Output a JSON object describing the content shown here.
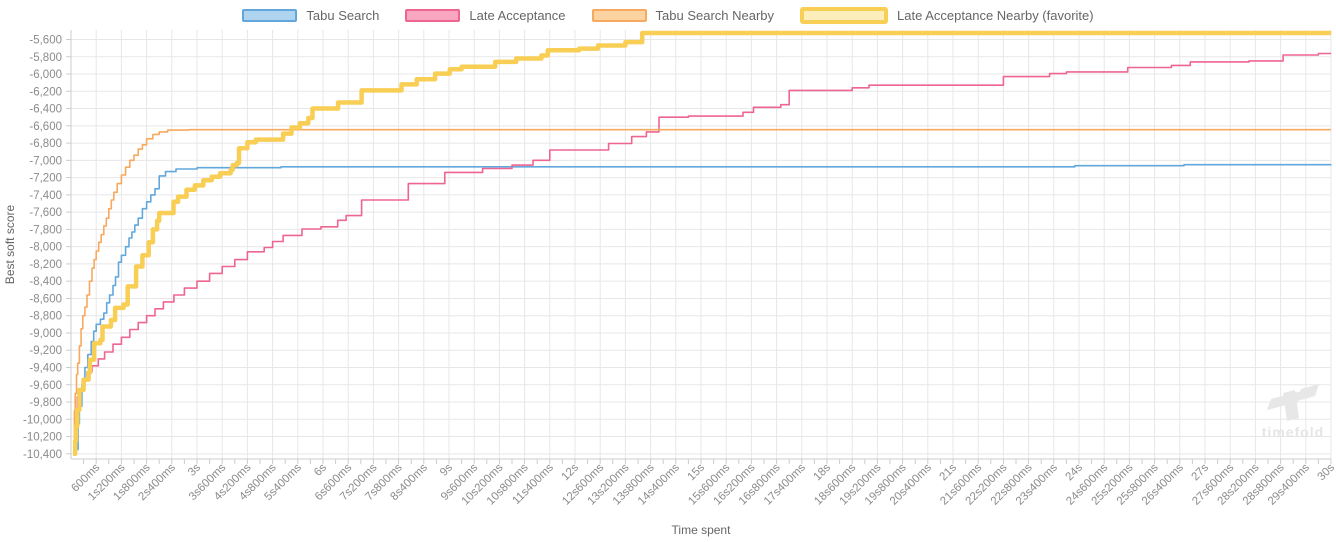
{
  "watermark": {
    "text": "timefold"
  },
  "chart_data": {
    "type": "line",
    "step": true,
    "title": "",
    "xlabel": "Time spent",
    "ylabel": "Best soft score",
    "x_unit": "seconds",
    "xlim_seconds": [
      0,
      30
    ],
    "ylim": [
      -10460,
      -5490
    ],
    "grid": true,
    "legend_position": "top-center",
    "x_major_tick_interval_ms": 600,
    "x_minor_tick_interval_ms": 300,
    "y_tick_interval": 200,
    "x_ticks": [
      {
        "t": 0.6,
        "label": "600ms"
      },
      {
        "t": 1.2,
        "label": "1s200ms"
      },
      {
        "t": 1.8,
        "label": "1s800ms"
      },
      {
        "t": 2.4,
        "label": "2s400ms"
      },
      {
        "t": 3,
        "label": "3s"
      },
      {
        "t": 3.6,
        "label": "3s600ms"
      },
      {
        "t": 4.2,
        "label": "4s200ms"
      },
      {
        "t": 4.8,
        "label": "4s800ms"
      },
      {
        "t": 5.4,
        "label": "5s400ms"
      },
      {
        "t": 6,
        "label": "6s"
      },
      {
        "t": 6.6,
        "label": "6s600ms"
      },
      {
        "t": 7.2,
        "label": "7s200ms"
      },
      {
        "t": 7.8,
        "label": "7s800ms"
      },
      {
        "t": 8.4,
        "label": "8s400ms"
      },
      {
        "t": 9,
        "label": "9s"
      },
      {
        "t": 9.6,
        "label": "9s600ms"
      },
      {
        "t": 10.2,
        "label": "10s200ms"
      },
      {
        "t": 10.8,
        "label": "10s800ms"
      },
      {
        "t": 11.4,
        "label": "11s400ms"
      },
      {
        "t": 12,
        "label": "12s"
      },
      {
        "t": 12.6,
        "label": "12s600ms"
      },
      {
        "t": 13.2,
        "label": "13s200ms"
      },
      {
        "t": 13.8,
        "label": "13s800ms"
      },
      {
        "t": 14.4,
        "label": "14s400ms"
      },
      {
        "t": 15,
        "label": "15s"
      },
      {
        "t": 15.6,
        "label": "15s600ms"
      },
      {
        "t": 16.2,
        "label": "16s200ms"
      },
      {
        "t": 16.8,
        "label": "16s800ms"
      },
      {
        "t": 17.4,
        "label": "17s400ms"
      },
      {
        "t": 18,
        "label": "18s"
      },
      {
        "t": 18.6,
        "label": "18s600ms"
      },
      {
        "t": 19.2,
        "label": "19s200ms"
      },
      {
        "t": 19.8,
        "label": "19s800ms"
      },
      {
        "t": 20.4,
        "label": "20s400ms"
      },
      {
        "t": 21,
        "label": "21s"
      },
      {
        "t": 21.6,
        "label": "21s600ms"
      },
      {
        "t": 22.2,
        "label": "22s200ms"
      },
      {
        "t": 22.8,
        "label": "22s800ms"
      },
      {
        "t": 23.4,
        "label": "23s400ms"
      },
      {
        "t": 24,
        "label": "24s"
      },
      {
        "t": 24.6,
        "label": "24s600ms"
      },
      {
        "t": 25.2,
        "label": "25s200ms"
      },
      {
        "t": 25.8,
        "label": "25s800ms"
      },
      {
        "t": 26.4,
        "label": "26s400ms"
      },
      {
        "t": 27,
        "label": "27s"
      },
      {
        "t": 27.6,
        "label": "27s600ms"
      },
      {
        "t": 28.2,
        "label": "28s200ms"
      },
      {
        "t": 28.8,
        "label": "28s800ms"
      },
      {
        "t": 29.4,
        "label": "29s400ms"
      },
      {
        "t": 30,
        "label": "30s"
      }
    ],
    "y_ticks": [
      {
        "v": -5600,
        "label": "-5,600"
      },
      {
        "v": -5800,
        "label": "-5,800"
      },
      {
        "v": -6000,
        "label": "-6,000"
      },
      {
        "v": -6200,
        "label": "-6,200"
      },
      {
        "v": -6400,
        "label": "-6,400"
      },
      {
        "v": -6600,
        "label": "-6,600"
      },
      {
        "v": -6800,
        "label": "-6,800"
      },
      {
        "v": -7000,
        "label": "-7,000"
      },
      {
        "v": -7200,
        "label": "-7,200"
      },
      {
        "v": -7400,
        "label": "-7,400"
      },
      {
        "v": -7600,
        "label": "-7,600"
      },
      {
        "v": -7800,
        "label": "-7,800"
      },
      {
        "v": -8000,
        "label": "-8,000"
      },
      {
        "v": -8200,
        "label": "-8,200"
      },
      {
        "v": -8400,
        "label": "-8,400"
      },
      {
        "v": -8600,
        "label": "-8,600"
      },
      {
        "v": -8800,
        "label": "-8,800"
      },
      {
        "v": -9000,
        "label": "-9,000"
      },
      {
        "v": -9200,
        "label": "-9,200"
      },
      {
        "v": -9400,
        "label": "-9,400"
      },
      {
        "v": -9600,
        "label": "-9,600"
      },
      {
        "v": -9800,
        "label": "-9,800"
      },
      {
        "v": -10000,
        "label": "-10,000"
      },
      {
        "v": -10200,
        "label": "-10,200"
      },
      {
        "v": -10400,
        "label": "-10,400"
      }
    ],
    "series": [
      {
        "name": "Tabu Search",
        "color": "#62a7dc",
        "legend_fill": "#aed4f0",
        "line_width": 1.6,
        "favorite": false,
        "points": [
          [
            0.14,
            -10350
          ],
          [
            0.17,
            -10050
          ],
          [
            0.2,
            -9850
          ],
          [
            0.26,
            -9600
          ],
          [
            0.33,
            -9400
          ],
          [
            0.4,
            -9250
          ],
          [
            0.48,
            -9100
          ],
          [
            0.54,
            -8980
          ],
          [
            0.6,
            -8900
          ],
          [
            0.7,
            -8840
          ],
          [
            0.78,
            -8770
          ],
          [
            0.85,
            -8650
          ],
          [
            0.92,
            -8560
          ],
          [
            1.0,
            -8450
          ],
          [
            1.06,
            -8350
          ],
          [
            1.13,
            -8180
          ],
          [
            1.2,
            -8100
          ],
          [
            1.3,
            -8000
          ],
          [
            1.38,
            -7900
          ],
          [
            1.45,
            -7830
          ],
          [
            1.52,
            -7750
          ],
          [
            1.6,
            -7670
          ],
          [
            1.7,
            -7560
          ],
          [
            1.8,
            -7480
          ],
          [
            1.9,
            -7400
          ],
          [
            2.0,
            -7330
          ],
          [
            2.1,
            -7180
          ],
          [
            2.25,
            -7130
          ],
          [
            2.5,
            -7100
          ],
          [
            3.0,
            -7085
          ],
          [
            5.0,
            -7075
          ],
          [
            23.9,
            -7062
          ],
          [
            26.5,
            -7050
          ],
          [
            30,
            -7048
          ]
        ]
      },
      {
        "name": "Late Acceptance",
        "color": "#ee6590",
        "legend_fill": "#f8a6c1",
        "line_width": 1.6,
        "favorite": false,
        "points": [
          [
            0.07,
            -10350
          ],
          [
            0.1,
            -9930
          ],
          [
            0.15,
            -9740
          ],
          [
            0.2,
            -9650
          ],
          [
            0.28,
            -9540
          ],
          [
            0.38,
            -9450
          ],
          [
            0.5,
            -9380
          ],
          [
            0.65,
            -9300
          ],
          [
            0.8,
            -9220
          ],
          [
            1.0,
            -9130
          ],
          [
            1.2,
            -9050
          ],
          [
            1.4,
            -8960
          ],
          [
            1.6,
            -8880
          ],
          [
            1.8,
            -8800
          ],
          [
            2.0,
            -8720
          ],
          [
            2.2,
            -8640
          ],
          [
            2.45,
            -8560
          ],
          [
            2.7,
            -8480
          ],
          [
            3.0,
            -8400
          ],
          [
            3.3,
            -8310
          ],
          [
            3.6,
            -8230
          ],
          [
            3.9,
            -8150
          ],
          [
            4.2,
            -8060
          ],
          [
            4.6,
            -8010
          ],
          [
            4.8,
            -7940
          ],
          [
            5.05,
            -7870
          ],
          [
            5.5,
            -7795
          ],
          [
            5.95,
            -7770
          ],
          [
            6.35,
            -7695
          ],
          [
            6.55,
            -7640
          ],
          [
            6.92,
            -7460
          ],
          [
            8.03,
            -7270
          ],
          [
            8.9,
            -7140
          ],
          [
            9.8,
            -7095
          ],
          [
            10.5,
            -7055
          ],
          [
            11.0,
            -7000
          ],
          [
            11.4,
            -6880
          ],
          [
            12.8,
            -6805
          ],
          [
            13.35,
            -6725
          ],
          [
            13.7,
            -6670
          ],
          [
            14.0,
            -6500
          ],
          [
            14.7,
            -6488
          ],
          [
            16.0,
            -6443
          ],
          [
            16.25,
            -6385
          ],
          [
            16.9,
            -6355
          ],
          [
            17.1,
            -6190
          ],
          [
            18.6,
            -6160
          ],
          [
            19.0,
            -6130
          ],
          [
            22.2,
            -6030
          ],
          [
            23.3,
            -5995
          ],
          [
            23.7,
            -5975
          ],
          [
            25.16,
            -5925
          ],
          [
            26.2,
            -5900
          ],
          [
            26.65,
            -5860
          ],
          [
            28.05,
            -5848
          ],
          [
            28.86,
            -5780
          ],
          [
            29.7,
            -5762
          ],
          [
            30,
            -5762
          ]
        ]
      },
      {
        "name": "Tabu Search Nearby",
        "color": "#f7a95f",
        "legend_fill": "#fad3a1",
        "line_width": 1.6,
        "favorite": false,
        "points": [
          [
            0.05,
            -10300
          ],
          [
            0.08,
            -9900
          ],
          [
            0.1,
            -9700
          ],
          [
            0.13,
            -9480
          ],
          [
            0.16,
            -9350
          ],
          [
            0.2,
            -9150
          ],
          [
            0.24,
            -8950
          ],
          [
            0.28,
            -8800
          ],
          [
            0.33,
            -8700
          ],
          [
            0.38,
            -8560
          ],
          [
            0.44,
            -8400
          ],
          [
            0.5,
            -8250
          ],
          [
            0.55,
            -8150
          ],
          [
            0.6,
            -8050
          ],
          [
            0.66,
            -7950
          ],
          [
            0.72,
            -7860
          ],
          [
            0.78,
            -7760
          ],
          [
            0.84,
            -7670
          ],
          [
            0.9,
            -7560
          ],
          [
            0.96,
            -7460
          ],
          [
            1.02,
            -7370
          ],
          [
            1.1,
            -7270
          ],
          [
            1.2,
            -7170
          ],
          [
            1.3,
            -7080
          ],
          [
            1.4,
            -7000
          ],
          [
            1.5,
            -6940
          ],
          [
            1.6,
            -6870
          ],
          [
            1.7,
            -6820
          ],
          [
            1.8,
            -6750
          ],
          [
            1.95,
            -6700
          ],
          [
            2.1,
            -6670
          ],
          [
            2.3,
            -6650
          ],
          [
            2.8,
            -6645
          ],
          [
            30,
            -6645
          ]
        ]
      },
      {
        "name": "Late Acceptance Nearby (favorite)",
        "color": "#f8ce55",
        "legend_fill": "#fceebb",
        "line_width": 4.5,
        "favorite": true,
        "points": [
          [
            0.05,
            -10400
          ],
          [
            0.1,
            -10250
          ],
          [
            0.12,
            -10080
          ],
          [
            0.15,
            -9890
          ],
          [
            0.2,
            -9660
          ],
          [
            0.3,
            -9540
          ],
          [
            0.42,
            -9460
          ],
          [
            0.45,
            -9310
          ],
          [
            0.55,
            -9120
          ],
          [
            0.7,
            -9080
          ],
          [
            0.75,
            -8925
          ],
          [
            0.95,
            -8850
          ],
          [
            1.05,
            -8710
          ],
          [
            1.25,
            -8670
          ],
          [
            1.35,
            -8460
          ],
          [
            1.55,
            -8230
          ],
          [
            1.7,
            -8100
          ],
          [
            1.85,
            -7950
          ],
          [
            1.95,
            -7800
          ],
          [
            2.05,
            -7700
          ],
          [
            2.1,
            -7610
          ],
          [
            2.44,
            -7480
          ],
          [
            2.55,
            -7420
          ],
          [
            2.75,
            -7340
          ],
          [
            2.95,
            -7290
          ],
          [
            3.15,
            -7230
          ],
          [
            3.35,
            -7190
          ],
          [
            3.55,
            -7150
          ],
          [
            3.8,
            -7110
          ],
          [
            3.85,
            -7055
          ],
          [
            3.95,
            -7030
          ],
          [
            4.0,
            -6860
          ],
          [
            4.2,
            -6790
          ],
          [
            4.4,
            -6760
          ],
          [
            5.05,
            -6690
          ],
          [
            5.25,
            -6620
          ],
          [
            5.45,
            -6570
          ],
          [
            5.65,
            -6510
          ],
          [
            5.75,
            -6400
          ],
          [
            6.36,
            -6330
          ],
          [
            6.92,
            -6190
          ],
          [
            7.87,
            -6120
          ],
          [
            8.23,
            -6060
          ],
          [
            8.67,
            -5995
          ],
          [
            9.02,
            -5945
          ],
          [
            9.3,
            -5915
          ],
          [
            10.1,
            -5860
          ],
          [
            10.6,
            -5820
          ],
          [
            11.2,
            -5785
          ],
          [
            11.35,
            -5725
          ],
          [
            12.1,
            -5705
          ],
          [
            12.55,
            -5670
          ],
          [
            13.2,
            -5630
          ],
          [
            13.6,
            -5525
          ],
          [
            30,
            -5525
          ]
        ]
      }
    ],
    "colors": {
      "grid": "#e7e7e7",
      "axis_line": "#cccccc",
      "tick_text": "#8b8b8b",
      "legend_text": "#666666",
      "watermark": "#e7e7e7"
    }
  }
}
